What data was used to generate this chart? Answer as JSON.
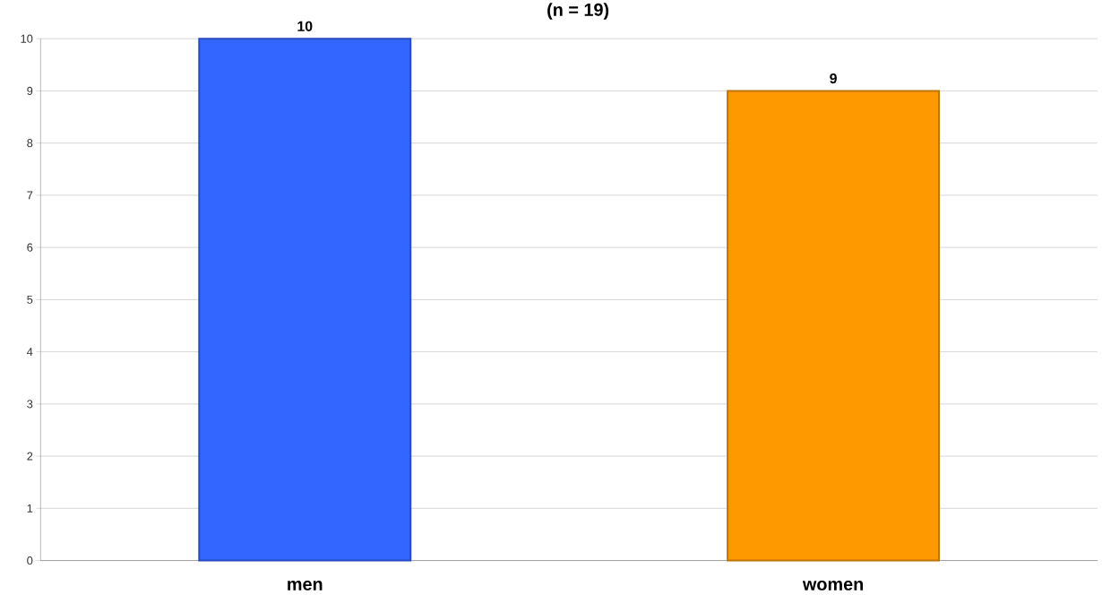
{
  "chart_data": {
    "type": "bar",
    "title": "(n = 19)",
    "categories": [
      "men",
      "women"
    ],
    "values": [
      10,
      9
    ],
    "colors": [
      "#3366ff",
      "#ff9900"
    ],
    "ylim": [
      0,
      10
    ],
    "yticks": [
      0,
      1,
      2,
      3,
      4,
      5,
      6,
      7,
      8,
      9,
      10
    ],
    "grid": "y",
    "data_labels": true
  }
}
